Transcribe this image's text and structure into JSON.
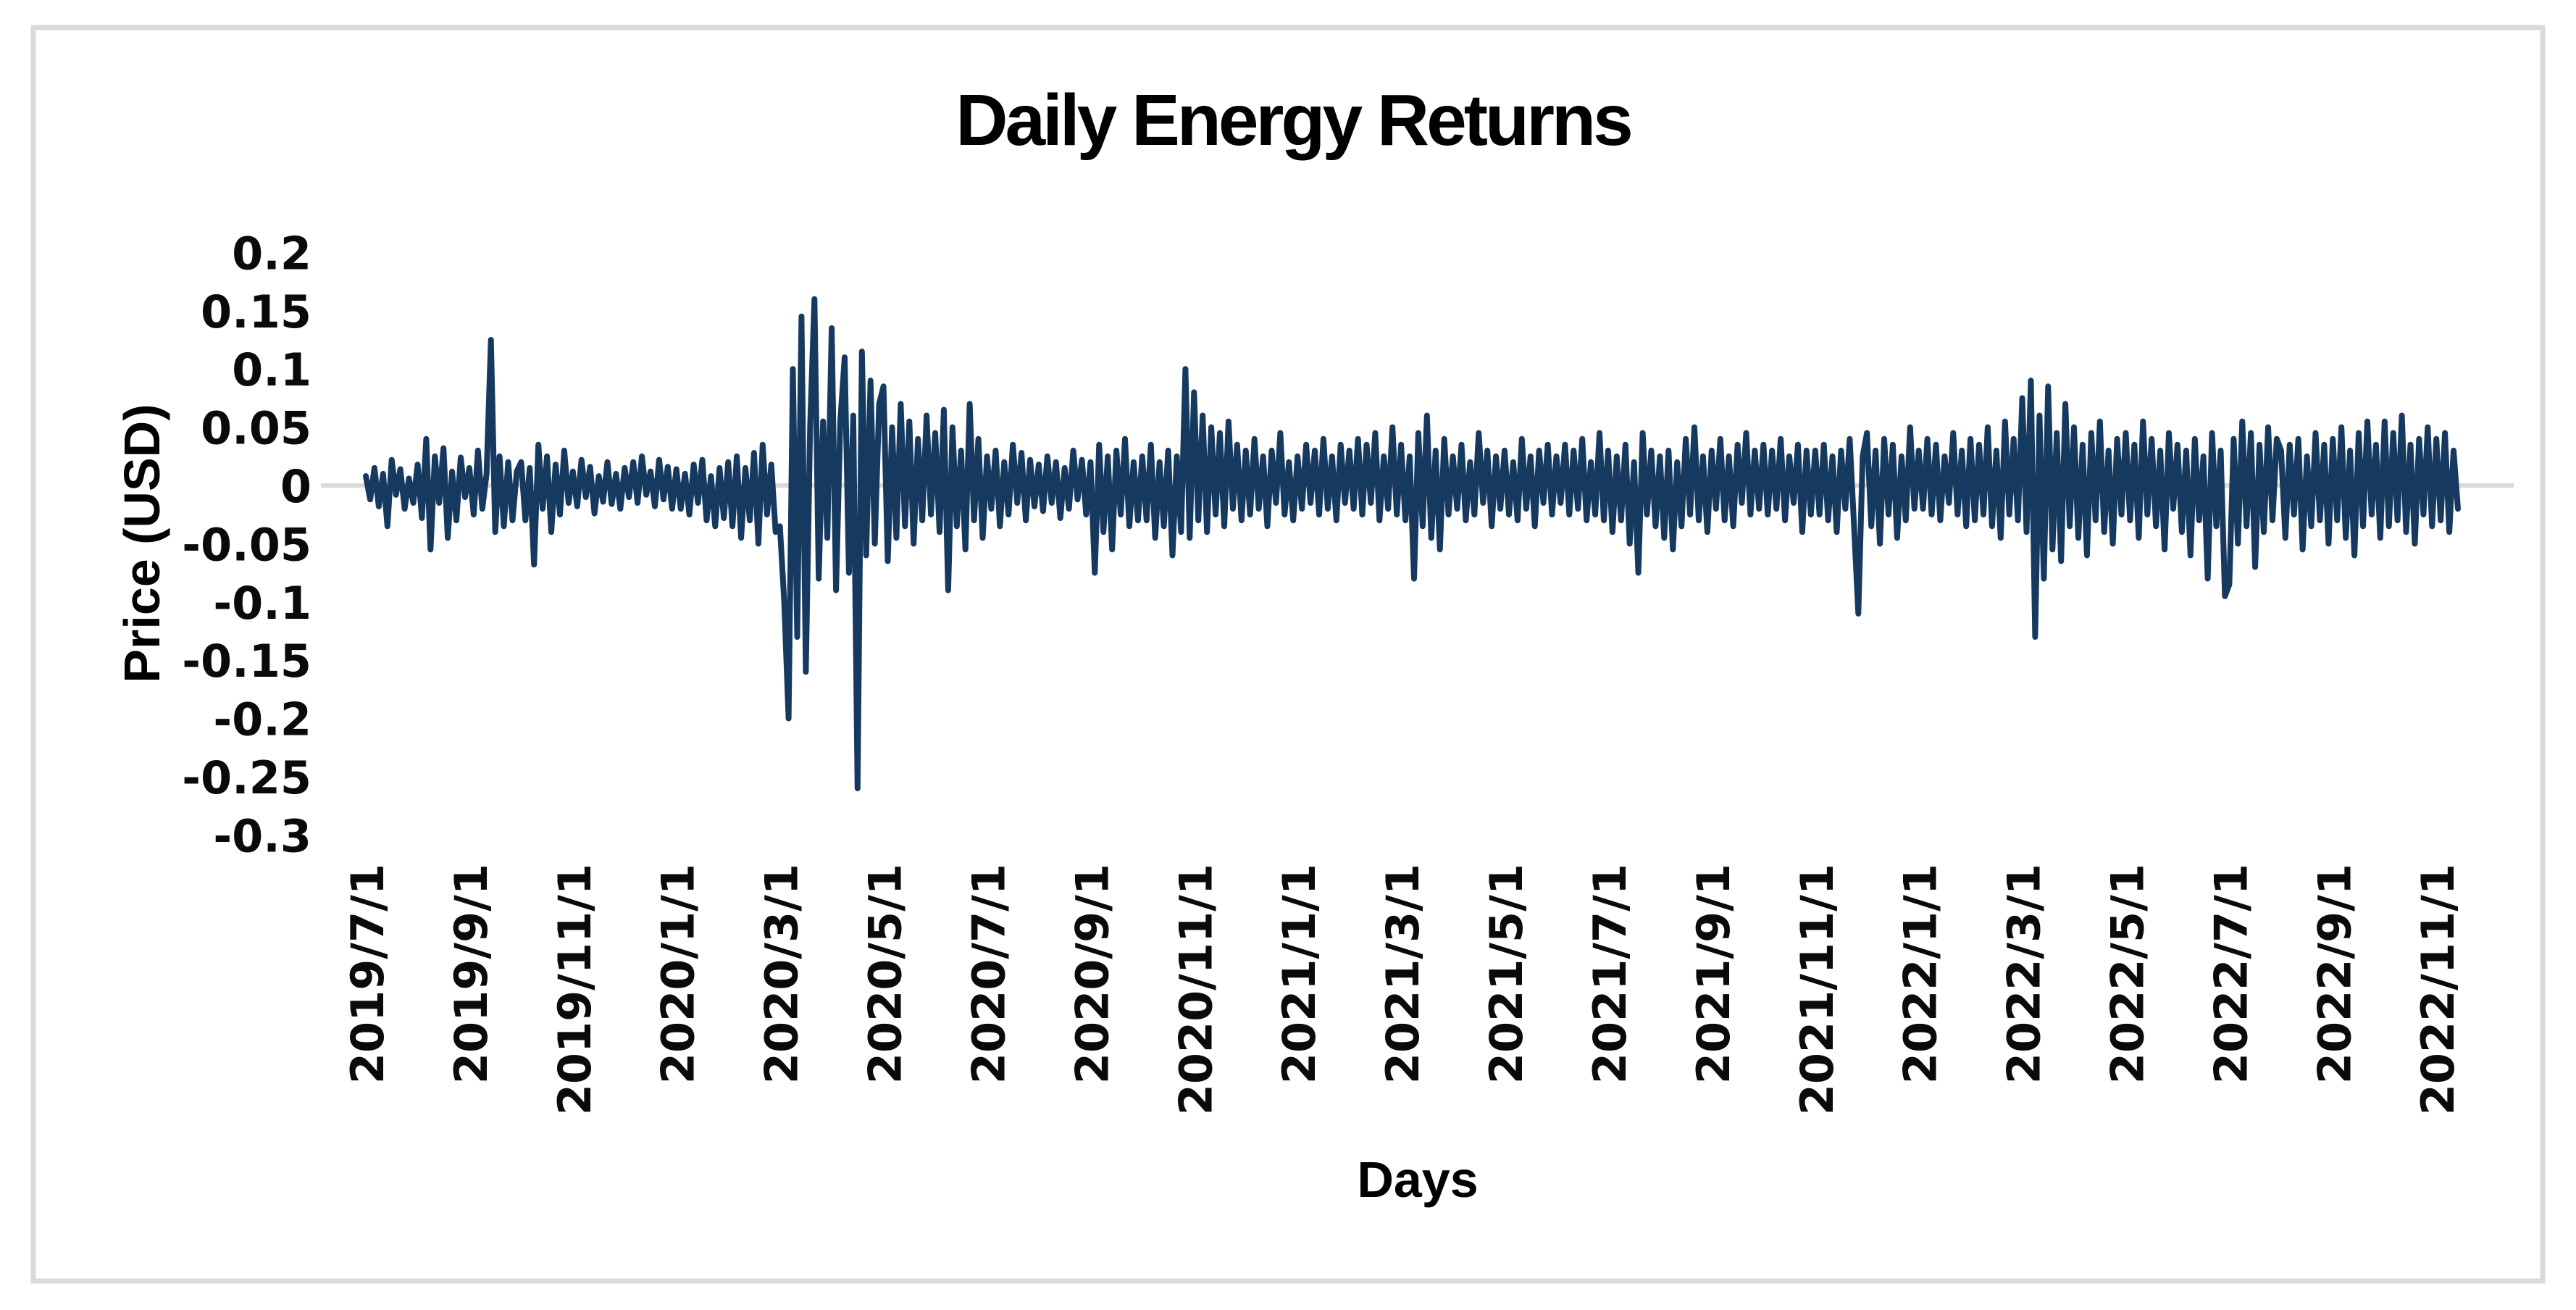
{
  "figure": {
    "background_color": "#FFFFFF",
    "border_color": "#D9D9D9",
    "zero_gridline_color": "#D9D9D9"
  },
  "chart_data": {
    "type": "line",
    "title": "Daily Energy Returns",
    "xlabel": "Days",
    "ylabel": "Price (USD)",
    "legend_position": "none",
    "grid": "horizontal zero-line only",
    "gridline_y": 0,
    "ylim": [
      -0.3,
      0.2
    ],
    "y_tick_labels": [
      "0.2",
      "0.15",
      "0.1",
      "0.05",
      "0",
      "-0.05",
      "-0.1",
      "-0.15",
      "-0.2",
      "-0.25",
      "-0.3"
    ],
    "y_ticks": [
      0.2,
      0.15,
      0.1,
      0.05,
      0,
      -0.05,
      -0.1,
      -0.15,
      -0.2,
      -0.25,
      -0.3
    ],
    "x_tick_labels": [
      "2019/7/1",
      "2019/9/1",
      "2019/11/1",
      "2020/1/1",
      "2020/3/1",
      "2020/5/1",
      "2020/7/1",
      "2020/9/1",
      "2020/11/1",
      "2021/1/1",
      "2021/3/1",
      "2021/5/1",
      "2021/7/1",
      "2021/9/1",
      "2021/11/1",
      "2022/1/1",
      "2022/3/1",
      "2022/5/1",
      "2022/7/1",
      "2022/9/1",
      "2022/11/1"
    ],
    "x_tick_every_n_points": 24,
    "points_per_month": 12,
    "series": [
      {
        "name": "Daily Energy Returns",
        "color": "#16395F",
        "values": [
          0.008,
          -0.012,
          0.015,
          -0.018,
          0.01,
          -0.035,
          0.022,
          -0.008,
          0.014,
          -0.02,
          0.006,
          -0.015,
          0.018,
          -0.028,
          0.04,
          -0.055,
          0.025,
          -0.015,
          0.032,
          -0.045,
          0.012,
          -0.03,
          0.024,
          -0.01,
          0.015,
          -0.025,
          0.03,
          -0.02,
          0.01,
          0.125,
          -0.04,
          0.025,
          -0.035,
          0.02,
          -0.03,
          0.012,
          0.02,
          -0.03,
          0.015,
          -0.068,
          0.035,
          -0.02,
          0.025,
          -0.04,
          0.018,
          -0.025,
          0.03,
          -0.015,
          0.012,
          -0.018,
          0.022,
          -0.01,
          0.016,
          -0.024,
          0.008,
          -0.014,
          0.02,
          -0.016,
          0.01,
          -0.02,
          0.015,
          -0.01,
          0.02,
          -0.015,
          0.025,
          -0.008,
          0.012,
          -0.018,
          0.022,
          -0.012,
          0.016,
          -0.02,
          0.014,
          -0.02,
          0.01,
          -0.025,
          0.018,
          -0.015,
          0.022,
          -0.03,
          0.008,
          -0.035,
          0.015,
          -0.028,
          0.02,
          -0.035,
          0.025,
          -0.045,
          0.015,
          -0.03,
          0.028,
          -0.05,
          0.035,
          -0.025,
          0.018,
          -0.04,
          -0.035,
          -0.1,
          -0.2,
          0.1,
          -0.13,
          0.145,
          -0.16,
          0.05,
          0.16,
          -0.08,
          0.055,
          -0.045,
          0.135,
          -0.09,
          0.055,
          0.11,
          -0.075,
          0.06,
          -0.26,
          0.115,
          -0.06,
          0.09,
          -0.05,
          0.07,
          0.085,
          -0.065,
          0.05,
          -0.045,
          0.07,
          -0.035,
          0.055,
          -0.05,
          0.04,
          -0.03,
          0.06,
          -0.025,
          0.045,
          -0.04,
          0.065,
          -0.09,
          0.05,
          -0.035,
          0.03,
          -0.055,
          0.07,
          -0.03,
          0.04,
          -0.045,
          0.025,
          -0.02,
          0.03,
          -0.035,
          0.02,
          -0.025,
          0.035,
          -0.015,
          0.028,
          -0.03,
          0.022,
          -0.018,
          0.018,
          -0.022,
          0.025,
          -0.015,
          0.02,
          -0.028,
          0.015,
          -0.02,
          0.03,
          -0.012,
          0.022,
          -0.025,
          0.02,
          -0.075,
          0.035,
          -0.04,
          0.025,
          -0.055,
          0.03,
          -0.025,
          0.04,
          -0.035,
          0.02,
          -0.03,
          0.025,
          -0.03,
          0.035,
          -0.045,
          0.02,
          -0.035,
          0.03,
          -0.06,
          0.025,
          -0.04,
          0.1,
          -0.045,
          0.08,
          -0.03,
          0.06,
          -0.04,
          0.05,
          -0.025,
          0.045,
          -0.035,
          0.055,
          -0.02,
          0.035,
          -0.03,
          0.03,
          -0.025,
          0.04,
          -0.02,
          0.025,
          -0.035,
          0.03,
          -0.015,
          0.045,
          -0.025,
          0.02,
          -0.03,
          0.025,
          -0.02,
          0.035,
          -0.015,
          0.03,
          -0.025,
          0.04,
          -0.02,
          0.025,
          -0.03,
          0.035,
          -0.015,
          0.03,
          -0.02,
          0.04,
          -0.025,
          0.035,
          -0.015,
          0.045,
          -0.03,
          0.025,
          -0.02,
          0.05,
          -0.025,
          0.035,
          -0.03,
          0.025,
          -0.08,
          0.045,
          -0.035,
          0.06,
          -0.045,
          0.03,
          -0.055,
          0.04,
          -0.025,
          0.025,
          -0.02,
          0.035,
          -0.03,
          0.02,
          -0.025,
          0.045,
          -0.015,
          0.03,
          -0.035,
          0.025,
          -0.02,
          0.03,
          -0.025,
          0.02,
          -0.03,
          0.04,
          -0.02,
          0.025,
          -0.035,
          0.03,
          -0.015,
          0.035,
          -0.025,
          0.025,
          -0.015,
          0.035,
          -0.025,
          0.03,
          -0.02,
          0.04,
          -0.03,
          0.02,
          -0.025,
          0.045,
          -0.03,
          0.03,
          -0.04,
          0.025,
          -0.03,
          0.035,
          -0.05,
          0.02,
          -0.075,
          0.045,
          -0.025,
          0.03,
          -0.035,
          0.025,
          -0.045,
          0.03,
          -0.055,
          0.02,
          -0.035,
          0.04,
          -0.025,
          0.05,
          -0.03,
          0.025,
          -0.04,
          0.03,
          -0.02,
          0.04,
          -0.03,
          0.025,
          -0.035,
          0.035,
          -0.015,
          0.045,
          -0.025,
          0.03,
          -0.02,
          0.035,
          -0.025,
          0.03,
          -0.02,
          0.04,
          -0.03,
          0.025,
          -0.015,
          0.035,
          -0.04,
          0.03,
          -0.025,
          0.03,
          -0.025,
          0.035,
          -0.03,
          0.025,
          -0.04,
          0.03,
          -0.02,
          0.04,
          -0.035,
          -0.11,
          0.025,
          0.045,
          -0.035,
          0.03,
          -0.05,
          0.04,
          -0.025,
          0.035,
          -0.045,
          0.025,
          -0.03,
          0.05,
          -0.02,
          0.03,
          -0.02,
          0.04,
          -0.025,
          0.035,
          -0.03,
          0.025,
          -0.015,
          0.045,
          -0.025,
          0.03,
          -0.035,
          0.04,
          -0.03,
          0.035,
          -0.025,
          0.05,
          -0.035,
          0.03,
          -0.045,
          0.055,
          -0.025,
          0.04,
          -0.03,
          0.075,
          -0.04,
          0.09,
          -0.13,
          0.06,
          -0.08,
          0.085,
          -0.055,
          0.045,
          -0.065,
          0.07,
          -0.035,
          0.05,
          -0.045,
          0.035,
          -0.06,
          0.045,
          -0.03,
          0.055,
          -0.04,
          0.03,
          -0.05,
          0.04,
          -0.025,
          0.045,
          -0.03,
          0.035,
          -0.045,
          0.055,
          -0.025,
          0.04,
          -0.035,
          0.03,
          -0.055,
          0.045,
          -0.02,
          0.035,
          -0.04,
          0.03,
          -0.06,
          0.04,
          -0.03,
          0.025,
          -0.08,
          0.045,
          -0.035,
          0.03,
          -0.095,
          -0.085,
          0.04,
          -0.05,
          0.055,
          -0.035,
          0.045,
          -0.07,
          0.035,
          -0.04,
          0.05,
          -0.03,
          0.04,
          0.03,
          -0.045,
          0.035,
          -0.025,
          0.04,
          -0.055,
          0.025,
          -0.035,
          0.045,
          -0.03,
          0.035,
          -0.05,
          0.04,
          -0.03,
          0.05,
          -0.045,
          0.03,
          -0.06,
          0.045,
          -0.035,
          0.055,
          -0.025,
          0.035,
          -0.045,
          0.055,
          -0.035,
          0.045,
          -0.03,
          0.06,
          -0.04,
          0.035,
          -0.05,
          0.04,
          -0.025,
          0.05,
          -0.035,
          0.04,
          -0.03,
          0.045,
          -0.04,
          0.03,
          -0.02
        ]
      }
    ]
  }
}
